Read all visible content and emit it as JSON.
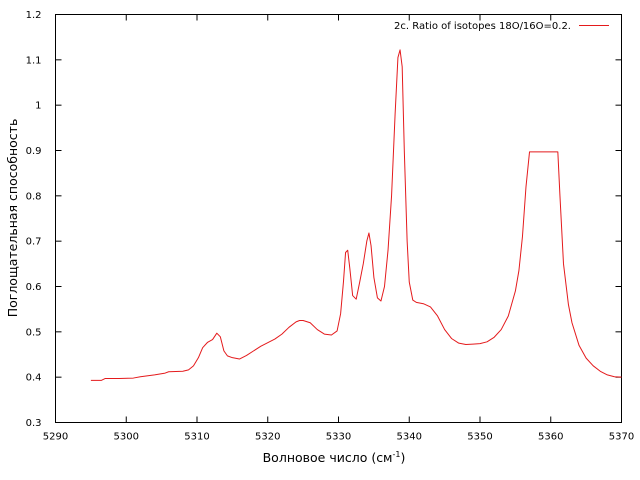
{
  "chart_data": {
    "type": "line",
    "xlabel": "Волновое число (см",
    "xlabel_sup": "-1",
    "xlabel_tail": ")",
    "ylabel": "Поглощательная способность",
    "xlim": [
      5290,
      5370
    ],
    "ylim": [
      0.3,
      1.2
    ],
    "xticks": [
      "5290",
      "5300",
      "5310",
      "5320",
      "5330",
      "5340",
      "5350",
      "5360",
      "5370"
    ],
    "yticks": [
      "0.3",
      "0.4",
      "0.5",
      "0.6",
      "0.7",
      "0.8",
      "0.9",
      "1",
      "1.1",
      "1.2"
    ],
    "grid": false,
    "legend_position": "top-right",
    "colors": {
      "series": "#e41a1c",
      "axes": "#000000"
    },
    "series": [
      {
        "name": "2c. Ratio of isotopes 18O/16O=0.2.",
        "x": [
          5295.0,
          5296.5,
          5297.0,
          5299.0,
          5301.0,
          5302.0,
          5304.0,
          5305.5,
          5306.0,
          5308.0,
          5308.8,
          5309.5,
          5310.2,
          5310.8,
          5311.5,
          5312.2,
          5312.8,
          5313.3,
          5313.8,
          5314.3,
          5315.0,
          5316.0,
          5317.0,
          5318.0,
          5319.0,
          5320.0,
          5321.0,
          5322.0,
          5323.0,
          5324.0,
          5324.5,
          5325.0,
          5326.0,
          5327.0,
          5328.0,
          5329.0,
          5329.8,
          5330.3,
          5330.7,
          5331.0,
          5331.3,
          5331.6,
          5332.0,
          5332.5,
          5333.0,
          5333.5,
          5334.0,
          5334.3,
          5334.6,
          5335.0,
          5335.5,
          5336.0,
          5336.5,
          5337.0,
          5337.5,
          5338.0,
          5338.4,
          5338.7,
          5339.0,
          5339.3,
          5339.7,
          5340.0,
          5340.5,
          5341.0,
          5342.0,
          5343.0,
          5344.0,
          5345.0,
          5346.0,
          5347.0,
          5348.0,
          5349.0,
          5350.0,
          5351.0,
          5352.0,
          5353.0,
          5354.0,
          5355.0,
          5355.5,
          5356.0,
          5356.5,
          5357.0,
          5358.0,
          5359.0,
          5360.0,
          5361.0,
          5361.3,
          5361.8,
          5362.5,
          5363.0,
          5364.0,
          5365.0,
          5366.0,
          5367.0,
          5368.0,
          5369.0,
          5370.0
        ],
        "y": [
          0.393,
          0.393,
          0.397,
          0.397,
          0.398,
          0.401,
          0.405,
          0.409,
          0.412,
          0.413,
          0.416,
          0.425,
          0.443,
          0.465,
          0.477,
          0.483,
          0.497,
          0.489,
          0.458,
          0.447,
          0.443,
          0.44,
          0.448,
          0.458,
          0.468,
          0.476,
          0.484,
          0.495,
          0.51,
          0.522,
          0.525,
          0.525,
          0.52,
          0.505,
          0.495,
          0.493,
          0.502,
          0.54,
          0.61,
          0.675,
          0.68,
          0.64,
          0.58,
          0.572,
          0.61,
          0.65,
          0.7,
          0.718,
          0.69,
          0.62,
          0.575,
          0.568,
          0.6,
          0.68,
          0.8,
          0.98,
          1.105,
          1.122,
          1.085,
          0.9,
          0.7,
          0.61,
          0.57,
          0.565,
          0.562,
          0.555,
          0.535,
          0.505,
          0.485,
          0.475,
          0.472,
          0.473,
          0.474,
          0.478,
          0.488,
          0.505,
          0.535,
          0.59,
          0.635,
          0.71,
          0.82,
          0.897,
          0.897,
          0.897,
          0.897,
          0.897,
          0.8,
          0.65,
          0.56,
          0.52,
          0.47,
          0.442,
          0.425,
          0.413,
          0.405,
          0.401,
          0.4
        ]
      }
    ]
  }
}
